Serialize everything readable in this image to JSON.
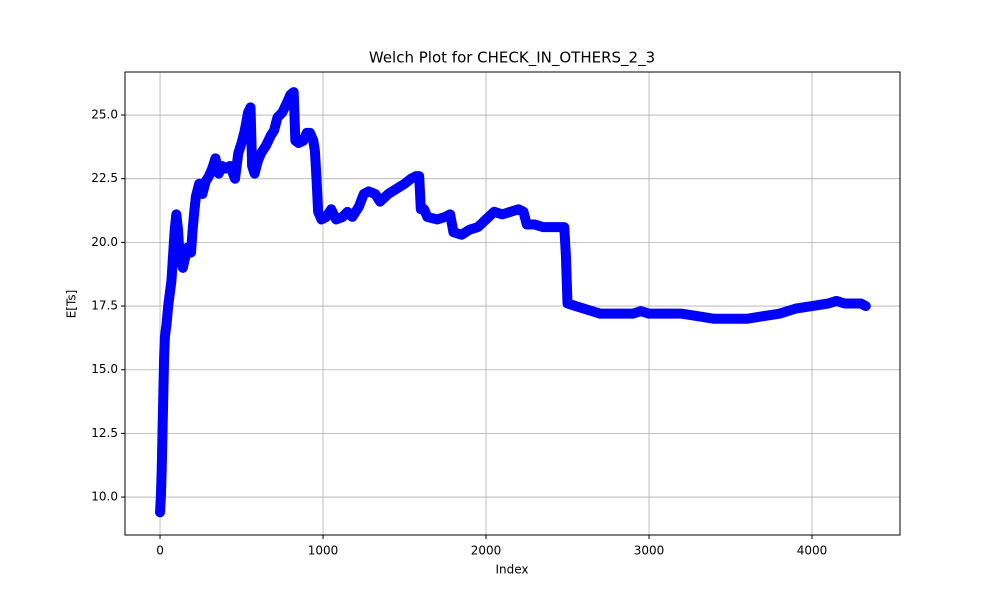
{
  "chart_data": {
    "type": "line",
    "title": "Welch Plot for CHECK_IN_OTHERS_2_3",
    "x_label": "Index",
    "y_label": "E[Ts]",
    "color": "#0000ff",
    "marker": true,
    "grid": true,
    "x": [
      0,
      5,
      10,
      15,
      20,
      25,
      30,
      40,
      50,
      60,
      70,
      80,
      90,
      100,
      110,
      120,
      130,
      140,
      150,
      170,
      190,
      200,
      210,
      220,
      240,
      260,
      280,
      300,
      320,
      340,
      360,
      380,
      400,
      430,
      460,
      480,
      500,
      520,
      540,
      555,
      565,
      580,
      600,
      620,
      650,
      680,
      700,
      720,
      750,
      780,
      800,
      820,
      830,
      850,
      880,
      900,
      920,
      940,
      950,
      960,
      970,
      990,
      1020,
      1050,
      1080,
      1120,
      1150,
      1180,
      1220,
      1250,
      1280,
      1320,
      1350,
      1400,
      1450,
      1500,
      1540,
      1570,
      1590,
      1600,
      1620,
      1640,
      1700,
      1750,
      1780,
      1800,
      1850,
      1900,
      1950,
      2000,
      2050,
      2100,
      2150,
      2200,
      2230,
      2250,
      2300,
      2350,
      2400,
      2430,
      2480,
      2490,
      2500,
      2550,
      2600,
      2650,
      2700,
      2800,
      2900,
      2950,
      3000,
      3100,
      3200,
      3300,
      3400,
      3500,
      3600,
      3700,
      3800,
      3900,
      4000,
      4100,
      4150,
      4200,
      4250,
      4300,
      4330
    ],
    "values": [
      9.4,
      10,
      11,
      12.5,
      14,
      15.5,
      16.3,
      16.8,
      17.5,
      18,
      18.5,
      19.5,
      20.5,
      21.1,
      20.5,
      19.5,
      19.2,
      19.0,
      19.3,
      19.8,
      19.6,
      20.5,
      21.2,
      21.8,
      22.3,
      21.9,
      22.4,
      22.6,
      22.9,
      23.3,
      22.7,
      23.0,
      22.9,
      23.0,
      22.5,
      23.5,
      23.9,
      24.4,
      25.1,
      25.3,
      23.0,
      22.7,
      23.2,
      23.5,
      23.8,
      24.2,
      24.4,
      24.9,
      25.1,
      25.5,
      25.8,
      25.9,
      24.0,
      23.9,
      24.0,
      24.3,
      24.3,
      24.0,
      23.6,
      22.5,
      21.2,
      20.9,
      21.0,
      21.3,
      20.9,
      21.0,
      21.2,
      21.0,
      21.4,
      21.9,
      22.0,
      21.9,
      21.6,
      21.9,
      22.1,
      22.3,
      22.5,
      22.6,
      22.6,
      21.3,
      21.3,
      21.0,
      20.9,
      21.0,
      21.1,
      20.4,
      20.3,
      20.5,
      20.6,
      20.9,
      21.2,
      21.1,
      21.2,
      21.3,
      21.2,
      20.7,
      20.7,
      20.6,
      20.6,
      20.6,
      20.6,
      19.5,
      17.6,
      17.5,
      17.4,
      17.3,
      17.2,
      17.2,
      17.2,
      17.3,
      17.2,
      17.2,
      17.2,
      17.1,
      17.0,
      17.0,
      17.0,
      17.1,
      17.2,
      17.4,
      17.5,
      17.6,
      17.7,
      17.6,
      17.6,
      17.6,
      17.5
    ],
    "xlim": [
      -215,
      4540
    ],
    "xticks": [
      0,
      1000,
      2000,
      3000,
      4000
    ],
    "ylim": [
      8.51,
      26.69
    ],
    "yticks": [
      {
        "value": 10,
        "label": "10.0"
      },
      {
        "value": 12.5,
        "label": "12.5"
      },
      {
        "value": 15,
        "label": "15.0"
      },
      {
        "value": 17.5,
        "label": "17.5"
      },
      {
        "value": 20,
        "label": "20.0"
      },
      {
        "value": 22.5,
        "label": "22.5"
      },
      {
        "value": 25,
        "label": "25.0"
      }
    ]
  }
}
